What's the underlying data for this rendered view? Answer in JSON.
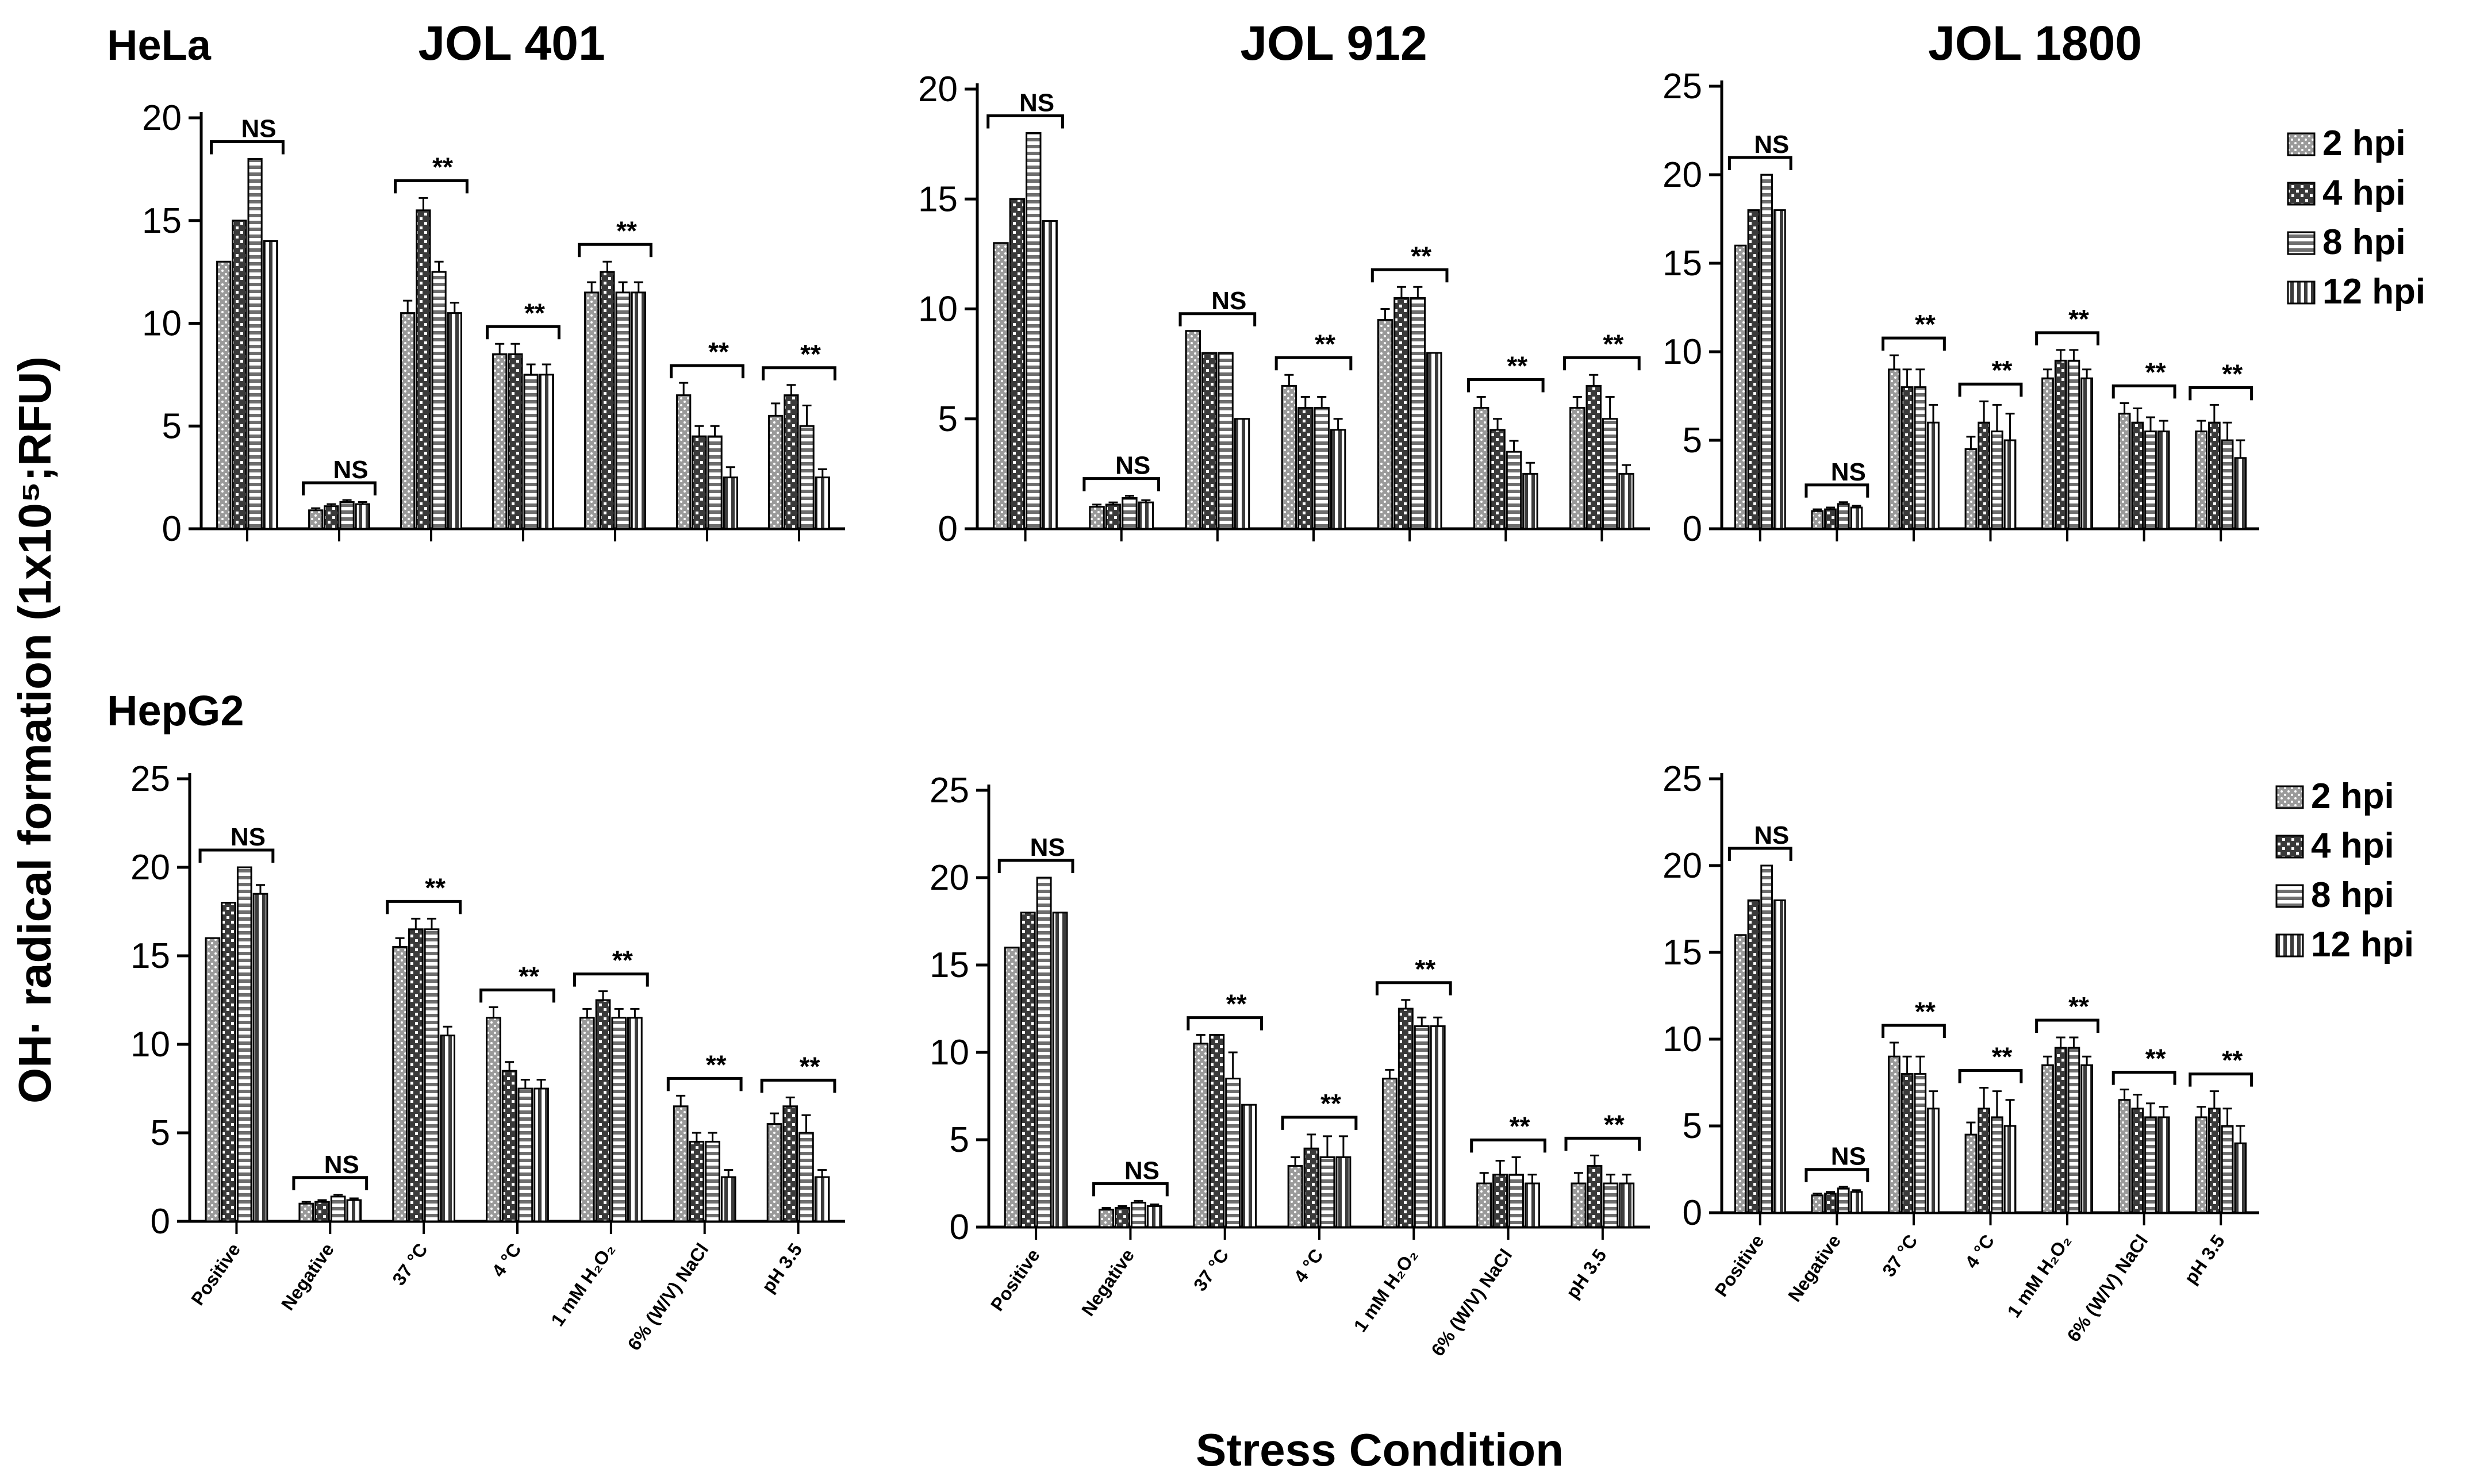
{
  "figure": {
    "row_labels": [
      "HeLa",
      "HepG2"
    ],
    "panel_titles": [
      "JOL 401",
      "JOL 912",
      "JOL 1800"
    ],
    "y_axis_title": "OH· radical formation (1x10⁵;RFU)",
    "x_axis_title": "Stress Condition",
    "legend": [
      "2 hpi",
      "4 hpi",
      "8 hpi",
      "12 hpi"
    ],
    "categories": [
      "Positive",
      "Negative",
      "37 °C",
      "4 °C",
      "1 mM H₂O₂",
      "6% (W/V) NaCl",
      "pH 3.5"
    ]
  },
  "chart_data": [
    {
      "type": "bar",
      "row": "HeLa",
      "title": "JOL 401",
      "ylim": [
        0,
        20
      ],
      "yticks": [
        0,
        5,
        10,
        15,
        20
      ],
      "categories": [
        "Positive",
        "Negative",
        "37 °C",
        "4 °C",
        "1 mM H₂O₂",
        "6% (W/V) NaCl",
        "pH 3.5"
      ],
      "series": [
        {
          "name": "2 hpi",
          "values": [
            13,
            0.9,
            10.5,
            8.5,
            11.5,
            6.5,
            5.5
          ],
          "errors": [
            0,
            0.1,
            0.6,
            0.5,
            0.5,
            0.6,
            0.6
          ]
        },
        {
          "name": "4 hpi",
          "values": [
            15,
            1.1,
            15.5,
            8.5,
            12.5,
            4.5,
            6.5
          ],
          "errors": [
            0,
            0.1,
            0.6,
            0.5,
            0.5,
            0.5,
            0.5
          ]
        },
        {
          "name": "8 hpi",
          "values": [
            18,
            1.3,
            12.5,
            7.5,
            11.5,
            4.5,
            5.0
          ],
          "errors": [
            0,
            0.1,
            0.5,
            0.5,
            0.5,
            0.5,
            1.0
          ]
        },
        {
          "name": "12 hpi",
          "values": [
            14,
            1.2,
            10.5,
            7.5,
            11.5,
            2.5,
            2.5
          ],
          "errors": [
            0,
            0.1,
            0.5,
            0.5,
            0.5,
            0.5,
            0.4
          ]
        }
      ],
      "annotations": [
        "NS",
        "NS",
        "**",
        "**",
        "**",
        "**",
        "**"
      ]
    },
    {
      "type": "bar",
      "row": "HeLa",
      "title": "JOL 912",
      "ylim": [
        0,
        20
      ],
      "yticks": [
        0,
        5,
        10,
        15,
        20
      ],
      "categories": [
        "Positive",
        "Negative",
        "37 °C",
        "4 °C",
        "1 mM H₂O₂",
        "6% (W/V) NaCl",
        "pH 3.5"
      ],
      "series": [
        {
          "name": "2 hpi",
          "values": [
            13,
            1.0,
            9.0,
            6.5,
            9.5,
            5.5,
            5.5
          ],
          "errors": [
            0,
            0.1,
            0,
            0.5,
            0.5,
            0.5,
            0.5
          ]
        },
        {
          "name": "4 hpi",
          "values": [
            15,
            1.1,
            8.0,
            5.5,
            10.5,
            4.5,
            6.5
          ],
          "errors": [
            0,
            0.1,
            0,
            0.5,
            0.5,
            0.5,
            0.5
          ]
        },
        {
          "name": "8 hpi",
          "values": [
            18,
            1.4,
            8.0,
            5.5,
            10.5,
            3.5,
            5.0
          ],
          "errors": [
            0,
            0.1,
            0,
            0.5,
            0.5,
            0.5,
            1.0
          ]
        },
        {
          "name": "12 hpi",
          "values": [
            14,
            1.2,
            5.0,
            4.5,
            8.0,
            2.5,
            2.5
          ],
          "errors": [
            0,
            0.1,
            0,
            0.5,
            0,
            0.5,
            0.4
          ]
        }
      ],
      "annotations": [
        "NS",
        "NS",
        "NS",
        "**",
        "**",
        "**",
        "**"
      ]
    },
    {
      "type": "bar",
      "row": "HeLa",
      "title": "JOL 1800",
      "ylim": [
        0,
        25
      ],
      "yticks": [
        0,
        5,
        10,
        15,
        20,
        25
      ],
      "categories": [
        "Positive",
        "Negative",
        "37 °C",
        "4 °C",
        "1 mM H₂O₂",
        "6% (W/V) NaCl",
        "pH 3.5"
      ],
      "series": [
        {
          "name": "2 hpi",
          "values": [
            16,
            1.0,
            9.0,
            4.5,
            8.5,
            6.5,
            5.5
          ],
          "errors": [
            0,
            0.1,
            0.8,
            0.7,
            0.5,
            0.6,
            0.6
          ]
        },
        {
          "name": "4 hpi",
          "values": [
            18,
            1.1,
            8.0,
            6.0,
            9.5,
            6.0,
            6.0
          ],
          "errors": [
            0,
            0.1,
            1.0,
            1.2,
            0.6,
            0.8,
            1.0
          ]
        },
        {
          "name": "8 hpi",
          "values": [
            20,
            1.4,
            8.0,
            5.5,
            9.5,
            5.5,
            5.0
          ],
          "errors": [
            0,
            0.1,
            1.0,
            1.5,
            0.6,
            0.8,
            1.0
          ]
        },
        {
          "name": "12 hpi",
          "values": [
            18,
            1.2,
            6.0,
            5.0,
            8.5,
            5.5,
            4.0
          ],
          "errors": [
            0,
            0.1,
            1.0,
            1.5,
            0.5,
            0.6,
            1.0
          ]
        }
      ],
      "annotations": [
        "NS",
        "NS",
        "**",
        "**",
        "**",
        "**",
        "**"
      ]
    },
    {
      "type": "bar",
      "row": "HepG2",
      "title": "JOL 401",
      "ylim": [
        0,
        25
      ],
      "yticks": [
        0,
        5,
        10,
        15,
        20,
        25
      ],
      "categories": [
        "Positive",
        "Negative",
        "37 °C",
        "4 °C",
        "1 mM H₂O₂",
        "6% (W/V) NaCl",
        "pH 3.5"
      ],
      "series": [
        {
          "name": "2 hpi",
          "values": [
            16,
            1.0,
            15.5,
            11.5,
            11.5,
            6.5,
            5.5
          ],
          "errors": [
            0,
            0.1,
            0.5,
            0.6,
            0.5,
            0.6,
            0.6
          ]
        },
        {
          "name": "4 hpi",
          "values": [
            18,
            1.1,
            16.5,
            8.5,
            12.5,
            4.5,
            6.5
          ],
          "errors": [
            0,
            0.1,
            0.6,
            0.5,
            0.5,
            0.5,
            0.5
          ]
        },
        {
          "name": "8 hpi",
          "values": [
            20,
            1.4,
            16.5,
            7.5,
            11.5,
            4.5,
            5.0
          ],
          "errors": [
            0,
            0.1,
            0.6,
            0.5,
            0.5,
            0.5,
            1.0
          ]
        },
        {
          "name": "12 hpi",
          "values": [
            18.5,
            1.2,
            10.5,
            7.5,
            11.5,
            2.5,
            2.5
          ],
          "errors": [
            0.5,
            0.1,
            0.5,
            0.5,
            0.5,
            0.4,
            0.4
          ]
        }
      ],
      "annotations": [
        "NS",
        "NS",
        "**",
        "**",
        "**",
        "**",
        "**"
      ]
    },
    {
      "type": "bar",
      "row": "HepG2",
      "title": "JOL 912",
      "ylim": [
        0,
        25
      ],
      "yticks": [
        0,
        5,
        10,
        15,
        20,
        25
      ],
      "categories": [
        "Positive",
        "Negative",
        "37 °C",
        "4 °C",
        "1 mM H₂O₂",
        "6% (W/V) NaCl",
        "pH 3.5"
      ],
      "series": [
        {
          "name": "2 hpi",
          "values": [
            16,
            1.0,
            10.5,
            3.5,
            8.5,
            2.5,
            2.5
          ],
          "errors": [
            0,
            0.1,
            0.5,
            0.5,
            0.5,
            0.6,
            0.6
          ]
        },
        {
          "name": "4 hpi",
          "values": [
            18,
            1.1,
            11.0,
            4.5,
            12.5,
            3.0,
            3.5
          ],
          "errors": [
            0,
            0.1,
            0,
            0.8,
            0.5,
            0.8,
            0.6
          ]
        },
        {
          "name": "8 hpi",
          "values": [
            20,
            1.4,
            8.5,
            4.0,
            11.5,
            3.0,
            2.5
          ],
          "errors": [
            0,
            0.1,
            1.5,
            1.2,
            0.5,
            1.0,
            0.5
          ]
        },
        {
          "name": "12 hpi",
          "values": [
            18,
            1.2,
            7.0,
            4.0,
            11.5,
            2.5,
            2.5
          ],
          "errors": [
            0,
            0.1,
            0,
            1.2,
            0.5,
            0.5,
            0.5
          ]
        }
      ],
      "annotations": [
        "NS",
        "NS",
        "**",
        "**",
        "**",
        "**",
        "**"
      ]
    },
    {
      "type": "bar",
      "row": "HepG2",
      "title": "JOL 1800",
      "ylim": [
        0,
        25
      ],
      "yticks": [
        0,
        5,
        10,
        15,
        20,
        25
      ],
      "categories": [
        "Positive",
        "Negative",
        "37 °C",
        "4 °C",
        "1 mM H₂O₂",
        "6% (W/V) NaCl",
        "pH 3.5"
      ],
      "series": [
        {
          "name": "2 hpi",
          "values": [
            16,
            1.0,
            9.0,
            4.5,
            8.5,
            6.5,
            5.5
          ],
          "errors": [
            0,
            0.1,
            0.8,
            0.7,
            0.5,
            0.6,
            0.6
          ]
        },
        {
          "name": "4 hpi",
          "values": [
            18,
            1.1,
            8.0,
            6.0,
            9.5,
            6.0,
            6.0
          ],
          "errors": [
            0,
            0.1,
            1.0,
            1.2,
            0.6,
            0.8,
            1.0
          ]
        },
        {
          "name": "8 hpi",
          "values": [
            20,
            1.4,
            8.0,
            5.5,
            9.5,
            5.5,
            5.0
          ],
          "errors": [
            0,
            0.1,
            1.0,
            1.5,
            0.6,
            0.8,
            1.0
          ]
        },
        {
          "name": "12 hpi",
          "values": [
            18,
            1.2,
            6.0,
            5.0,
            8.5,
            5.5,
            4.0
          ],
          "errors": [
            0,
            0.1,
            1.0,
            1.5,
            0.5,
            0.6,
            1.0
          ]
        }
      ],
      "annotations": [
        "NS",
        "NS",
        "**",
        "**",
        "**",
        "**",
        "**"
      ]
    }
  ]
}
